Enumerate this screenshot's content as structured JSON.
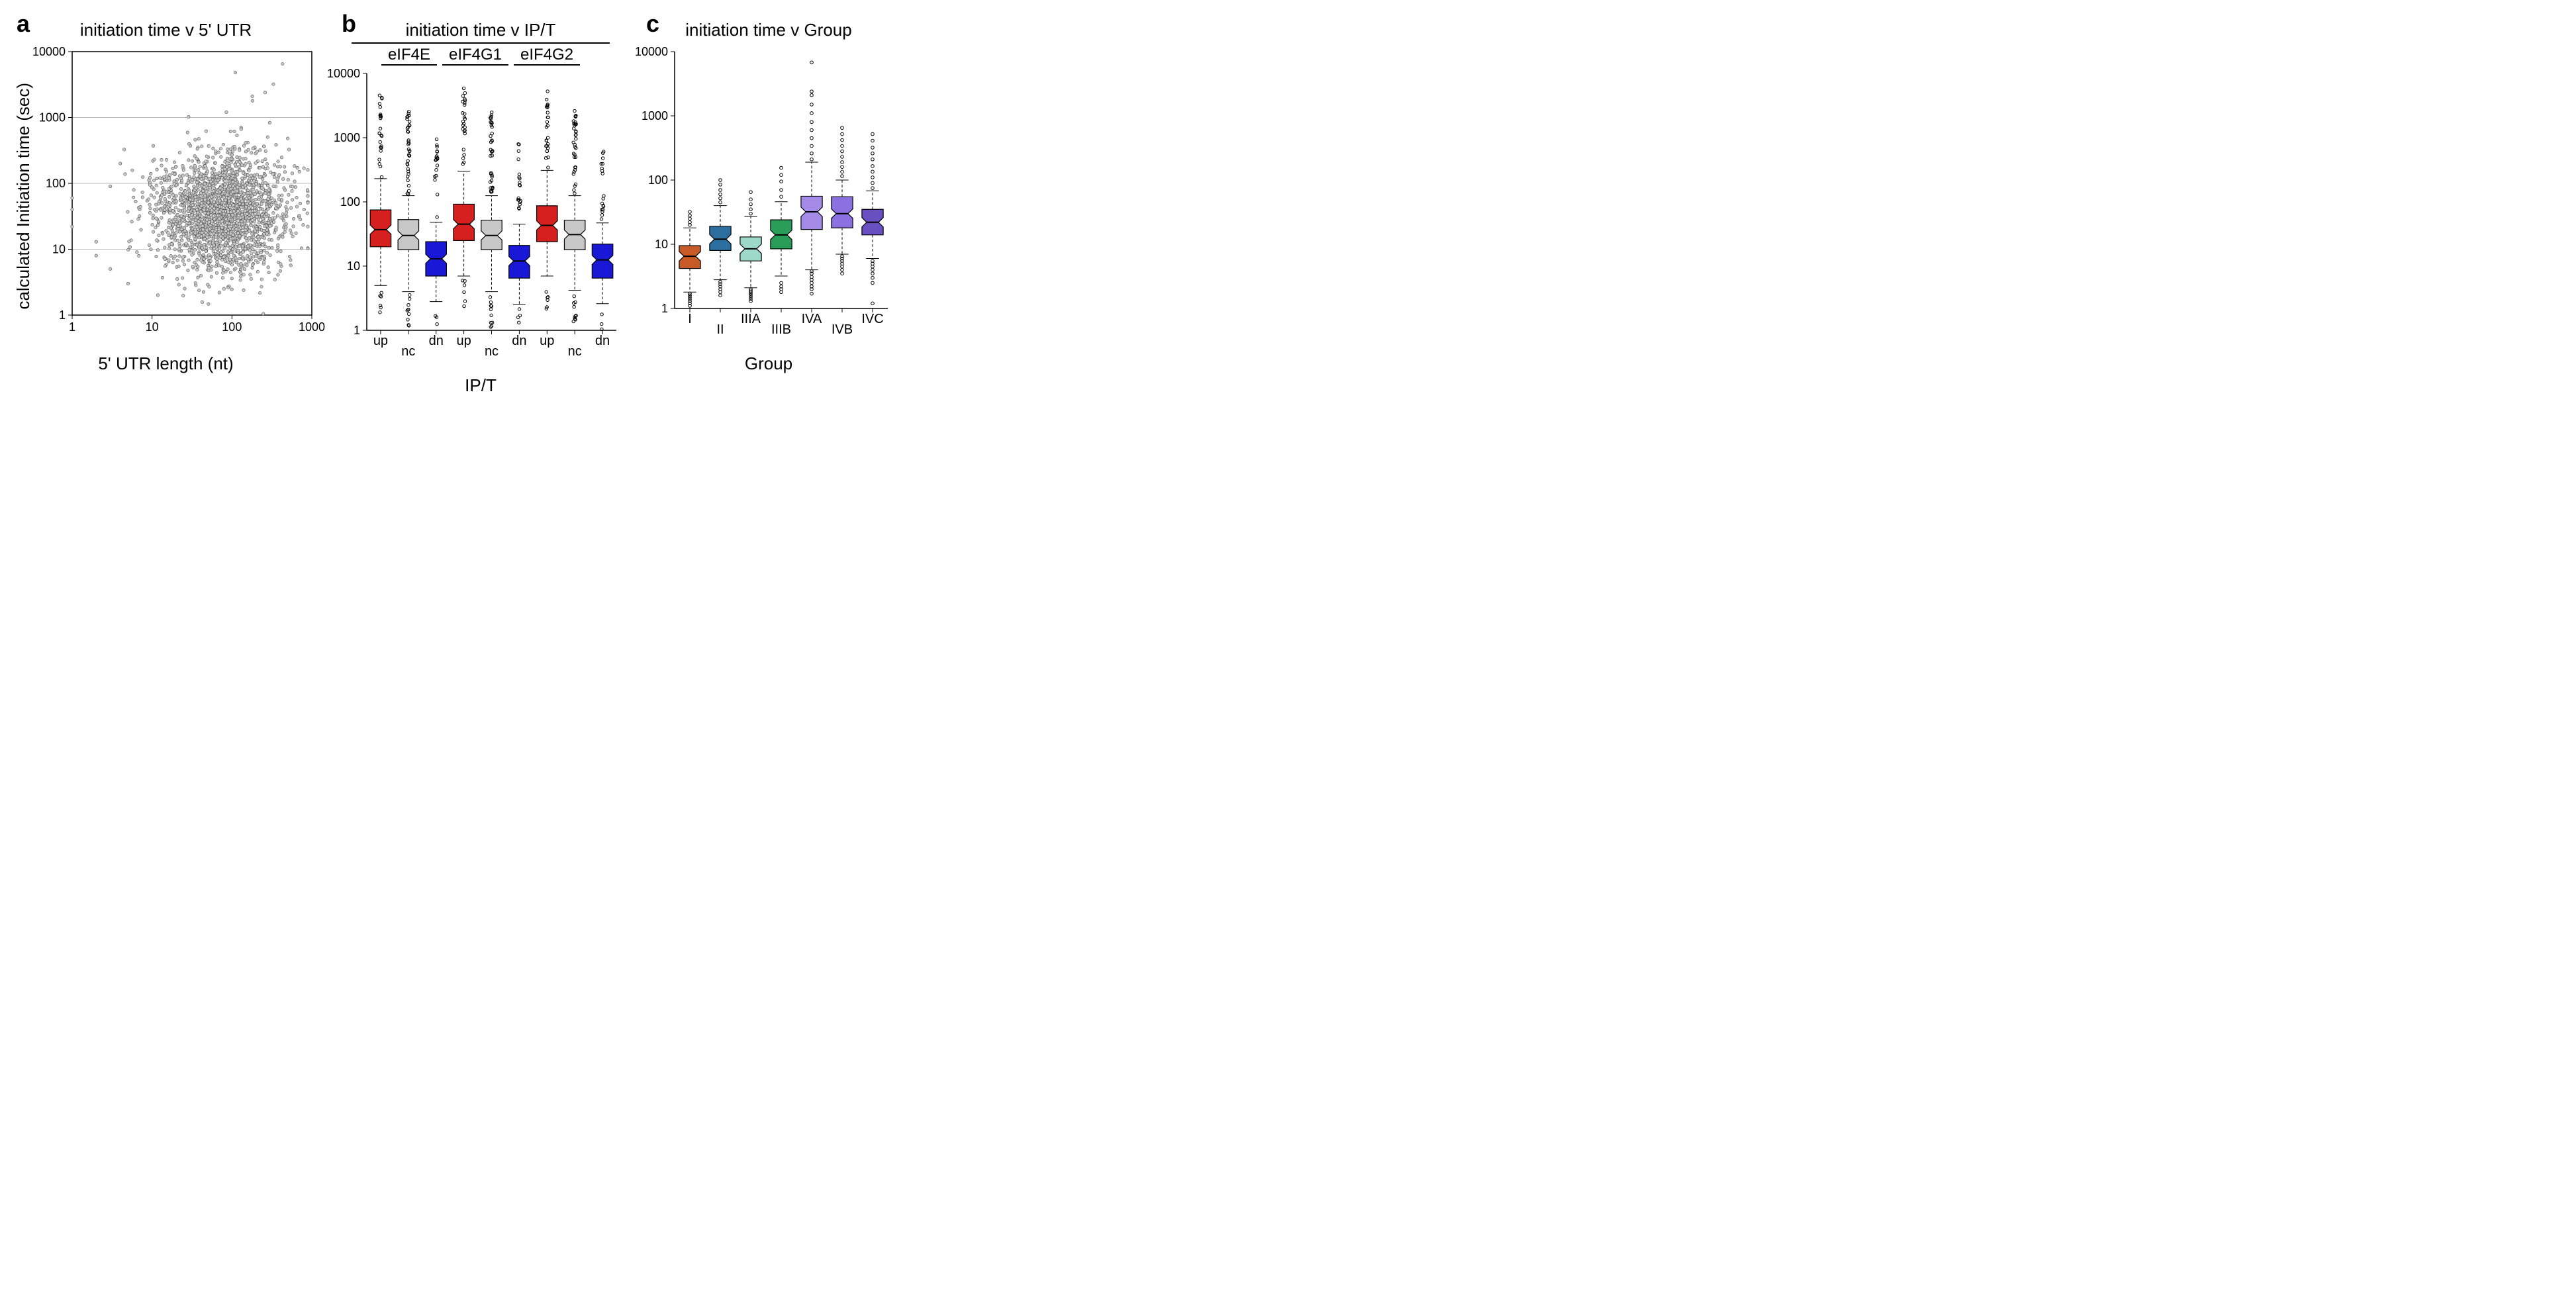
{
  "panel_a": {
    "label": "a",
    "title": "initiation time v 5' UTR",
    "type": "scatter",
    "xlabel": "5' UTR length (nt)",
    "ylabel": "calculated Initiation time (sec)",
    "xscale": "log",
    "yscale": "log",
    "xlim": [
      1,
      1000
    ],
    "ylim": [
      1,
      10000
    ],
    "xticks": [
      1,
      10,
      100,
      1000
    ],
    "yticks": [
      1,
      10,
      100,
      1000,
      10000
    ],
    "marker": {
      "shape": "circle",
      "size": 4.5,
      "fill": "#c8c8c8",
      "stroke": "#505050",
      "stroke_width": 0.6
    },
    "grid_color": "#bbbbbb",
    "seed": 7,
    "n_points": 2200,
    "cloud_center_logx": 1.85,
    "cloud_center_logy": 1.55,
    "cloud_sx": 0.42,
    "cloud_sy": 0.45,
    "extra_points": [
      [
        1,
        60
      ],
      [
        1,
        40
      ],
      [
        1,
        22
      ],
      [
        2,
        13
      ],
      [
        2,
        8
      ],
      [
        3,
        90
      ],
      [
        3,
        5
      ],
      [
        4,
        200
      ],
      [
        5,
        3
      ],
      [
        110,
        4800
      ],
      [
        430,
        6500
      ],
      [
        260,
        2400
      ],
      [
        180,
        2100
      ],
      [
        330,
        3200
      ],
      [
        500,
        480
      ],
      [
        700,
        150
      ],
      [
        800,
        40
      ]
    ]
  },
  "panel_b": {
    "label": "b",
    "super_title": "initiation time v IP/T",
    "groups": [
      "eIF4E",
      "eIF4G1",
      "eIF4G2"
    ],
    "categories": [
      "up",
      "nc",
      "dn"
    ],
    "xlabel": "IP/T",
    "type": "boxplot",
    "yscale": "log",
    "ylim": [
      1,
      10000
    ],
    "yticks": [
      1,
      10,
      100,
      1000,
      10000
    ],
    "colors": {
      "up": "#d62020",
      "nc": "#c8c8c8",
      "dn": "#1818d6"
    },
    "whisker_color": "#000000",
    "outlier_marker": {
      "shape": "open-circle",
      "size": 4,
      "stroke": "#000000"
    },
    "boxes": {
      "eIF4E": {
        "up": {
          "q1": 20,
          "med": 37,
          "q3": 75,
          "lw": 5,
          "uw": 230
        },
        "nc": {
          "q1": 18,
          "med": 30,
          "q3": 53,
          "lw": 4,
          "uw": 125
        },
        "dn": {
          "q1": 7,
          "med": 13,
          "q3": 24,
          "lw": 2.8,
          "uw": 48
        }
      },
      "eIF4G1": {
        "up": {
          "q1": 25,
          "med": 45,
          "q3": 92,
          "lw": 7,
          "uw": 300
        },
        "nc": {
          "q1": 18,
          "med": 30,
          "q3": 52,
          "lw": 4,
          "uw": 125
        },
        "dn": {
          "q1": 6.5,
          "med": 12,
          "q3": 21,
          "lw": 2.5,
          "uw": 45
        }
      },
      "eIF4G2": {
        "up": {
          "q1": 24,
          "med": 43,
          "q3": 87,
          "lw": 7,
          "uw": 310
        },
        "nc": {
          "q1": 18,
          "med": 31,
          "q3": 52,
          "lw": 4.2,
          "uw": 125
        },
        "dn": {
          "q1": 6.5,
          "med": 12.5,
          "q3": 22,
          "lw": 2.6,
          "uw": 47
        }
      }
    },
    "outlier_counts": {
      "up_high": 25,
      "nc_high": 35,
      "dn_high": 18,
      "up_low": 6,
      "nc_low": 10,
      "dn_low": 4
    }
  },
  "panel_c": {
    "label": "c",
    "title": "initiation time v Group",
    "type": "boxplot",
    "xlabel": "Group",
    "yscale": "log",
    "ylim": [
      1,
      10000
    ],
    "yticks": [
      1,
      10,
      100,
      1000,
      10000
    ],
    "categories": [
      "I",
      "II",
      "IIIA",
      "IIIB",
      "IVA",
      "IVB",
      "IVC"
    ],
    "colors": {
      "I": "#c85a28",
      "II": "#2d6ea0",
      "IIIA": "#9ed8c8",
      "IIIB": "#2b9d5b",
      "IVA": "#a58ae8",
      "IVB": "#8c6fe0",
      "IVC": "#6a4fc0"
    },
    "boxes": {
      "I": {
        "q1": 4.2,
        "med": 6.5,
        "q3": 9.5,
        "lw": 1.8,
        "uw": 18
      },
      "II": {
        "q1": 8,
        "med": 12,
        "q3": 19,
        "lw": 2.8,
        "uw": 40
      },
      "IIIA": {
        "q1": 5.5,
        "med": 8.5,
        "q3": 13,
        "lw": 2.1,
        "uw": 27
      },
      "IIIB": {
        "q1": 8.5,
        "med": 14,
        "q3": 24,
        "lw": 3.2,
        "uw": 46
      },
      "IVA": {
        "q1": 17,
        "med": 32,
        "q3": 56,
        "lw": 4,
        "uw": 190
      },
      "IVB": {
        "q1": 18,
        "med": 30,
        "q3": 55,
        "lw": 7,
        "uw": 100
      },
      "IVC": {
        "q1": 14,
        "med": 22,
        "q3": 35,
        "lw": 6,
        "uw": 68
      }
    },
    "outlier_ranges": {
      "I": {
        "low": [
          1.1,
          1.2,
          1.3,
          1.4,
          1.5,
          1.6,
          1.7
        ],
        "high": [
          20,
          22,
          25,
          28,
          32
        ]
      },
      "II": {
        "low": [
          1.6,
          1.8,
          2.0,
          2.2,
          2.4,
          2.6
        ],
        "high": [
          45,
          52,
          60,
          70,
          85,
          100
        ]
      },
      "IIIA": {
        "low": [
          1.3,
          1.4,
          1.5,
          1.6,
          1.7,
          1.8,
          1.9,
          2.0
        ],
        "high": [
          30,
          35,
          42,
          50,
          65
        ]
      },
      "IIIB": {
        "low": [
          1.8,
          2.0,
          2.2,
          2.5
        ],
        "high": [
          55,
          70,
          95,
          120,
          155
        ]
      },
      "IVA": {
        "low": [
          1.7,
          2.0,
          2.2,
          2.5,
          2.8,
          3.1,
          3.5,
          3.8
        ],
        "high": [
          210,
          260,
          340,
          450,
          600,
          800,
          1100,
          1500,
          2100,
          2400,
          6800
        ]
      },
      "IVB": {
        "low": [
          3.5,
          4.0,
          4.5,
          5.0,
          5.5,
          6.0,
          6.5
        ],
        "high": [
          115,
          135,
          160,
          190,
          230,
          280,
          340,
          420,
          520,
          650
        ]
      },
      "IVC": {
        "low": [
          1.2,
          2.5,
          3.0,
          3.5,
          4.0,
          4.5,
          5.0,
          5.5
        ],
        "high": [
          75,
          90,
          110,
          135,
          165,
          210,
          260,
          320,
          410,
          520
        ]
      }
    }
  },
  "layout": {
    "panel_a_w": 430,
    "panel_a_h": 460,
    "panel_b_w": 430,
    "panel_b_h": 460,
    "panel_c_w": 380,
    "panel_c_h": 460,
    "margin": {
      "l": 58,
      "r": 10,
      "t": 12,
      "b": 50
    },
    "axis_color": "#000000",
    "tick_fontsize": 18,
    "label_fontsize": 26,
    "title_fontsize": 26,
    "background_color": "#ffffff"
  }
}
